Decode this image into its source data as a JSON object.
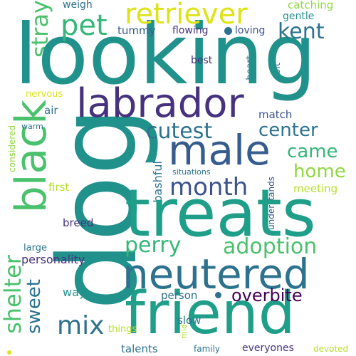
{
  "palette": {
    "indigo": "#46327e",
    "blue": "#365c8d",
    "steel": "#3b528b",
    "slate": "#2c728e",
    "teal": "#21918c",
    "teal_dark": "#1f9e89",
    "green": "#35b779",
    "green_light": "#4ac16d",
    "lime": "#6ece58",
    "yellowgreen": "#90d743",
    "chartreuse": "#b5de2b",
    "yellow": "#dde318",
    "purple": "#440154"
  },
  "words": {
    "dog": "dog",
    "looking": "looking",
    "treats": "treats",
    "friend": "friend",
    "neutered": "neutered",
    "labrador": "labrador",
    "male": "male",
    "black": "black",
    "retriever": "retriever",
    "pet": "pet",
    "kent": "kent",
    "stray": "stray",
    "month": "month",
    "cutest": "cutest",
    "center": "center",
    "came": "came",
    "home": "home",
    "perry": "perry",
    "adoption": "adoption",
    "shelter": "shelter",
    "sweet": "sweet",
    "mix": "mix",
    "overbite": "overbite",
    "weigh": "weigh",
    "catching": "catching",
    "gentle": "gentle",
    "tummy": "tummy",
    "flowing": "flowing",
    "loving": "loving",
    "heart": "heart",
    "bit": "bit",
    "best": "best",
    "nervous": "nervous",
    "air": "air",
    "match": "match",
    "warm": "warm",
    "considered": "considered",
    "situations": "situations",
    "bashful": "bashful",
    "first": "first",
    "meeting": "meeting",
    "understands": "understands",
    "breed": "breed",
    "large": "large",
    "personality": "personality",
    "way": "way",
    "person": "person",
    "things": "things",
    "slow": "slow",
    "talents": "talents",
    "mid": "mid",
    "family": "family",
    "everyones": "everyones",
    "devoted": "devoted"
  }
}
